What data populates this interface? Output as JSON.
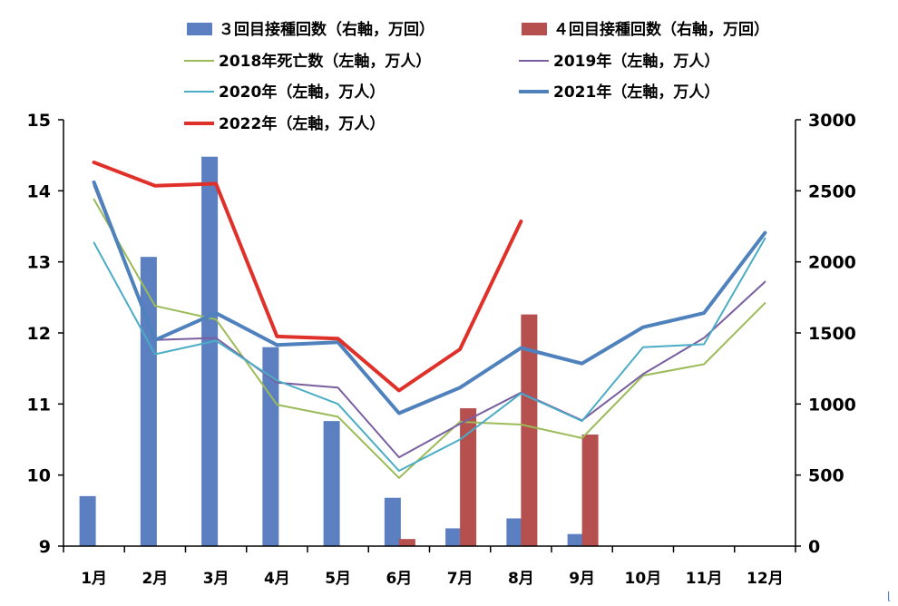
{
  "chart_data": {
    "type": "bar",
    "categories": [
      "1月",
      "2月",
      "3月",
      "4月",
      "5月",
      "6月",
      "7月",
      "8月",
      "9月",
      "10月",
      "11月",
      "12月"
    ],
    "left_axis": {
      "min": 9,
      "max": 15,
      "ticks": [
        "9",
        "10",
        "11",
        "12",
        "13",
        "14",
        "15"
      ]
    },
    "right_axis": {
      "min": 0,
      "max": 3000,
      "ticks": [
        "0",
        "500",
        "1000",
        "1500",
        "2000",
        "2500",
        "3000"
      ]
    },
    "grid": false,
    "legend_position": "top",
    "bar_series": [
      {
        "name": "３回目接種回数（右軸，万回）",
        "color": "#5b7fc0",
        "axis": "right",
        "values": [
          352,
          2035,
          2740,
          1400,
          880,
          340,
          125,
          195,
          85,
          null,
          null,
          null
        ]
      },
      {
        "name": "４回目接種回数（右軸，万回）",
        "color": "#b5504f",
        "axis": "right",
        "values": [
          null,
          null,
          null,
          null,
          null,
          50,
          970,
          1630,
          785,
          null,
          null,
          null
        ]
      }
    ],
    "line_series": [
      {
        "name": "2018年死亡数（左軸，万人）",
        "color": "#9bbb59",
        "width": 2,
        "axis": "left",
        "values": [
          13.88,
          12.38,
          12.19,
          10.99,
          10.82,
          9.96,
          10.75,
          10.71,
          10.52,
          11.4,
          11.56,
          12.42
        ]
      },
      {
        "name": "2019年（左軸，万人）",
        "color": "#7a5fa0",
        "width": 2,
        "axis": "left",
        "values": [
          14.07,
          11.9,
          11.93,
          11.3,
          11.23,
          10.25,
          10.72,
          11.16,
          10.77,
          11.42,
          11.93,
          12.72
        ]
      },
      {
        "name": "2020年（左軸，万人）",
        "color": "#4bacc6",
        "width": 2,
        "axis": "left",
        "values": [
          13.27,
          11.7,
          11.89,
          11.33,
          11.0,
          10.06,
          10.5,
          11.15,
          10.76,
          11.8,
          11.84,
          13.33
        ]
      },
      {
        "name": "2021年（左軸，万人）",
        "color": "#4f81bd",
        "width": 4,
        "axis": "left",
        "values": [
          14.12,
          11.9,
          12.28,
          11.83,
          11.87,
          10.87,
          11.23,
          11.79,
          11.57,
          12.08,
          12.28,
          13.41
        ]
      },
      {
        "name": "2022年（左軸，万人）",
        "color": "#e0302a",
        "width": 4,
        "axis": "left",
        "values": [
          14.4,
          14.07,
          14.1,
          11.95,
          11.92,
          11.19,
          11.77,
          13.57,
          null,
          null,
          null,
          null
        ]
      }
    ]
  }
}
